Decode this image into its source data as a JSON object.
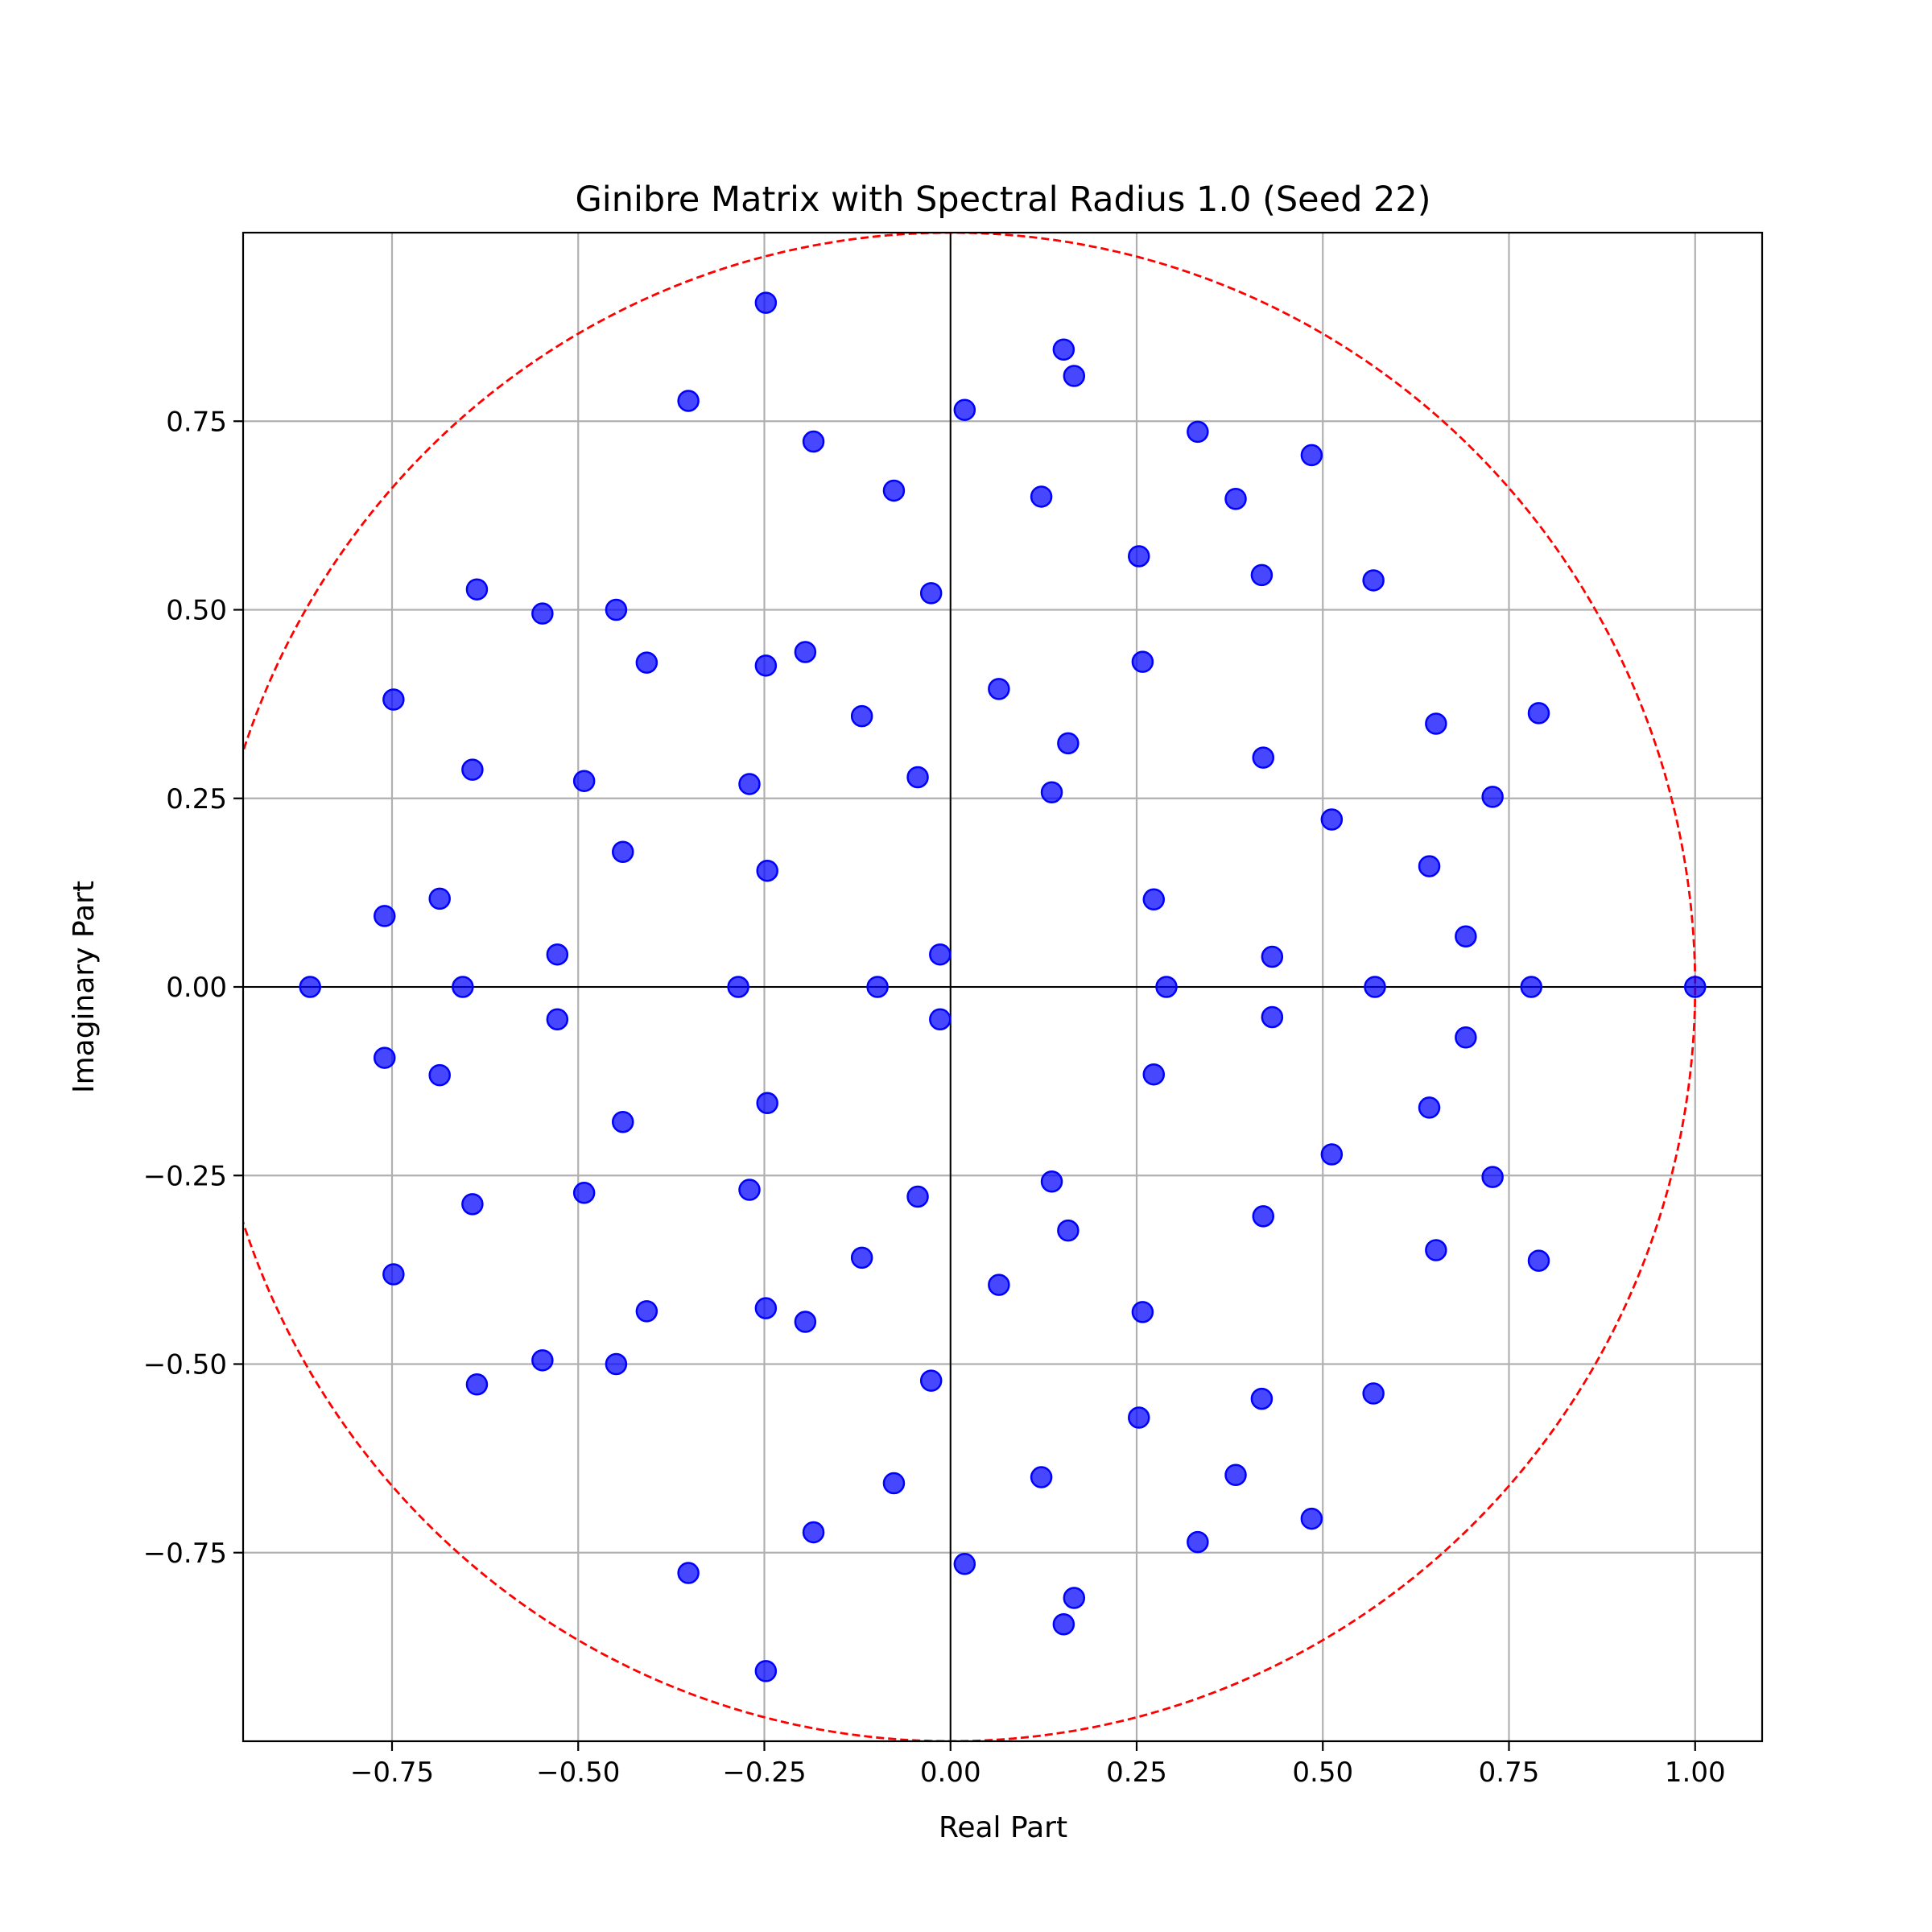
{
  "chart_data": {
    "type": "scatter",
    "title": "Ginibre Matrix with Spectral Radius 1.0 (Seed 22)",
    "xlabel": "Real Part",
    "ylabel": "Imaginary Part",
    "xlim": [
      -0.95,
      1.09
    ],
    "ylim": [
      -1.0,
      1.0
    ],
    "x_ticks": [
      {
        "value": -0.75,
        "label": "−0.75"
      },
      {
        "value": -0.5,
        "label": "−0.50"
      },
      {
        "value": -0.25,
        "label": "−0.25"
      },
      {
        "value": 0.0,
        "label": "0.00"
      },
      {
        "value": 0.25,
        "label": "0.25"
      },
      {
        "value": 0.5,
        "label": "0.50"
      },
      {
        "value": 0.75,
        "label": "0.75"
      },
      {
        "value": 1.0,
        "label": "1.00"
      }
    ],
    "y_ticks": [
      {
        "value": 0.75,
        "label": "0.75"
      },
      {
        "value": 0.5,
        "label": "0.50"
      },
      {
        "value": 0.25,
        "label": "0.25"
      },
      {
        "value": 0.0,
        "label": "0.00"
      },
      {
        "value": -0.25,
        "label": "−0.25"
      },
      {
        "value": -0.5,
        "label": "−0.50"
      },
      {
        "value": -0.75,
        "label": "−0.75"
      }
    ],
    "grid": true,
    "circle": {
      "radius": 1.0,
      "center": [
        0,
        0
      ],
      "style": "dashed",
      "color": "#ff0000"
    },
    "point_color": "#0000ff",
    "axis_line_color": "#000000",
    "grid_color": "#b0b0b0",
    "points": [
      [
        -0.86,
        0.0
      ],
      [
        -0.655,
        0.0
      ],
      [
        -0.285,
        0.0
      ],
      [
        -0.098,
        0.0
      ],
      [
        0.29,
        0.0
      ],
      [
        0.57,
        0.0
      ],
      [
        0.78,
        0.0
      ],
      [
        1.0,
        0.0
      ],
      [
        -0.248,
        0.907
      ],
      [
        -0.248,
        -0.907
      ],
      [
        0.152,
        0.845
      ],
      [
        0.152,
        -0.845
      ],
      [
        0.166,
        0.81
      ],
      [
        0.166,
        -0.81
      ],
      [
        -0.352,
        0.777
      ],
      [
        -0.352,
        -0.777
      ],
      [
        0.019,
        0.765
      ],
      [
        0.019,
        -0.765
      ],
      [
        0.332,
        0.736
      ],
      [
        0.332,
        -0.736
      ],
      [
        -0.184,
        0.723
      ],
      [
        -0.184,
        -0.723
      ],
      [
        0.485,
        0.705
      ],
      [
        0.485,
        -0.705
      ],
      [
        -0.076,
        0.658
      ],
      [
        -0.076,
        -0.658
      ],
      [
        0.122,
        0.65
      ],
      [
        0.122,
        -0.65
      ],
      [
        0.383,
        0.647
      ],
      [
        0.383,
        -0.647
      ],
      [
        0.253,
        0.571
      ],
      [
        0.253,
        -0.571
      ],
      [
        0.418,
        0.546
      ],
      [
        0.418,
        -0.546
      ],
      [
        0.568,
        0.539
      ],
      [
        0.568,
        -0.539
      ],
      [
        -0.636,
        0.527
      ],
      [
        -0.636,
        -0.527
      ],
      [
        -0.026,
        0.522
      ],
      [
        -0.026,
        -0.522
      ],
      [
        -0.548,
        0.495
      ],
      [
        -0.548,
        -0.495
      ],
      [
        -0.449,
        0.5
      ],
      [
        -0.449,
        -0.5
      ],
      [
        -0.195,
        0.444
      ],
      [
        -0.195,
        -0.444
      ],
      [
        -0.408,
        0.43
      ],
      [
        -0.408,
        -0.43
      ],
      [
        0.258,
        0.431
      ],
      [
        0.258,
        -0.431
      ],
      [
        -0.248,
        0.426
      ],
      [
        -0.248,
        -0.426
      ],
      [
        0.065,
        0.395
      ],
      [
        0.065,
        -0.395
      ],
      [
        -0.748,
        0.381
      ],
      [
        -0.748,
        -0.381
      ],
      [
        0.79,
        0.363
      ],
      [
        0.79,
        -0.363
      ],
      [
        -0.119,
        0.359
      ],
      [
        -0.119,
        -0.359
      ],
      [
        0.652,
        0.349
      ],
      [
        0.652,
        -0.349
      ],
      [
        0.158,
        0.323
      ],
      [
        0.158,
        -0.323
      ],
      [
        0.42,
        0.304
      ],
      [
        0.42,
        -0.304
      ],
      [
        -0.642,
        0.288
      ],
      [
        -0.642,
        -0.288
      ],
      [
        -0.044,
        0.278
      ],
      [
        -0.044,
        -0.278
      ],
      [
        -0.492,
        0.273
      ],
      [
        -0.492,
        -0.273
      ],
      [
        -0.27,
        0.269
      ],
      [
        -0.27,
        -0.269
      ],
      [
        0.136,
        0.258
      ],
      [
        0.136,
        -0.258
      ],
      [
        0.728,
        0.252
      ],
      [
        0.728,
        -0.252
      ],
      [
        0.512,
        0.222
      ],
      [
        0.512,
        -0.222
      ],
      [
        -0.44,
        0.179
      ],
      [
        -0.44,
        -0.179
      ],
      [
        0.643,
        0.16
      ],
      [
        0.643,
        -0.16
      ],
      [
        -0.246,
        0.154
      ],
      [
        -0.246,
        -0.154
      ],
      [
        -0.686,
        0.117
      ],
      [
        -0.686,
        -0.117
      ],
      [
        0.273,
        0.116
      ],
      [
        0.273,
        -0.116
      ],
      [
        -0.76,
        0.094
      ],
      [
        -0.76,
        -0.094
      ],
      [
        0.692,
        0.067
      ],
      [
        0.692,
        -0.067
      ],
      [
        -0.014,
        0.043
      ],
      [
        -0.014,
        -0.043
      ],
      [
        -0.528,
        0.043
      ],
      [
        -0.528,
        -0.043
      ],
      [
        0.432,
        0.04
      ],
      [
        0.432,
        -0.04
      ]
    ]
  }
}
